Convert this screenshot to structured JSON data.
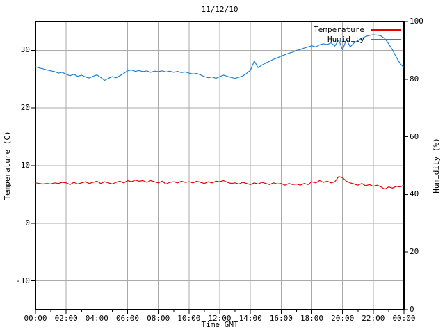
{
  "title": "11/12/10",
  "colors": {
    "background": "#ffffff",
    "border": "#000000",
    "grid": "#aaaaaa",
    "text": "#000000",
    "temperature_line": "#e60000",
    "humidity_line": "#1e7fd8"
  },
  "chart_data": {
    "type": "line",
    "title": "11/12/10",
    "xlabel": "Time GMT",
    "ylabel": "Temperature (C)",
    "y2label": "Humidity (%)",
    "x_range_hours": [
      0,
      24
    ],
    "x_major_tick_step_hours": 2,
    "x_minor_tick_step_hours": 1,
    "x_ticklabels": [
      "00:00",
      "02:00",
      "04:00",
      "06:00",
      "08:00",
      "10:00",
      "12:00",
      "14:00",
      "16:00",
      "18:00",
      "20:00",
      "22:00",
      "00:00"
    ],
    "ylim": [
      -15,
      35
    ],
    "yticks": [
      -10,
      0,
      10,
      20,
      30
    ],
    "y2lim": [
      0,
      100
    ],
    "y2ticks": [
      0,
      20,
      40,
      60,
      80,
      100
    ],
    "grid": true,
    "legend_position": "top-right-inside",
    "x_start_hours": 0,
    "x_step_hours": 0.25,
    "series": [
      {
        "name": "Temperature",
        "axis": "y",
        "color": "#e60000",
        "values": [
          7.0,
          6.9,
          6.8,
          6.9,
          6.8,
          7.0,
          6.9,
          7.1,
          7.0,
          6.7,
          7.1,
          6.8,
          7.0,
          7.2,
          6.9,
          7.1,
          7.3,
          6.9,
          7.2,
          7.0,
          6.8,
          7.1,
          7.3,
          7.0,
          7.4,
          7.2,
          7.5,
          7.3,
          7.4,
          7.1,
          7.4,
          7.2,
          7.0,
          7.3,
          6.8,
          7.1,
          7.2,
          7.0,
          7.3,
          7.1,
          7.2,
          7.0,
          7.3,
          7.1,
          6.9,
          7.2,
          7.0,
          7.3,
          7.2,
          7.4,
          7.1,
          6.9,
          7.0,
          6.8,
          7.1,
          6.9,
          6.7,
          7.0,
          6.8,
          7.1,
          6.9,
          6.7,
          7.0,
          6.8,
          6.9,
          6.6,
          6.9,
          6.7,
          6.8,
          6.6,
          6.9,
          6.7,
          7.2,
          7.0,
          7.4,
          7.1,
          7.3,
          7.0,
          7.2,
          8.1,
          7.9,
          7.3,
          7.0,
          6.8,
          6.6,
          6.9,
          6.5,
          6.7,
          6.4,
          6.6,
          6.3,
          5.9,
          6.3,
          6.1,
          6.4,
          6.3,
          6.6
        ]
      },
      {
        "name": "Humidity",
        "axis": "y2",
        "color": "#1e7fd8",
        "values": [
          84.3,
          83.9,
          83.6,
          83.2,
          82.9,
          82.6,
          82.1,
          82.4,
          81.7,
          81.2,
          81.7,
          81.0,
          81.4,
          80.8,
          80.4,
          81.0,
          81.5,
          80.6,
          79.6,
          80.3,
          80.9,
          80.5,
          81.2,
          82.0,
          82.9,
          83.2,
          82.7,
          83.0,
          82.6,
          82.9,
          82.4,
          82.8,
          82.6,
          82.9,
          82.5,
          82.8,
          82.4,
          82.7,
          82.3,
          82.5,
          82.1,
          81.8,
          82.0,
          81.5,
          80.9,
          80.5,
          80.8,
          80.3,
          80.9,
          81.4,
          81.0,
          80.6,
          80.3,
          80.7,
          81.1,
          82.0,
          83.1,
          86.3,
          84.0,
          84.9,
          85.6,
          86.2,
          86.9,
          87.4,
          88.0,
          88.5,
          89.0,
          89.4,
          90.0,
          90.3,
          90.8,
          91.2,
          91.6,
          91.2,
          91.9,
          92.3,
          92.0,
          92.6,
          91.5,
          93.6,
          90.2,
          93.8,
          91.2,
          92.6,
          93.4,
          94.2,
          94.8,
          95.2,
          95.4,
          95.3,
          95.0,
          94.1,
          92.3,
          90.2,
          87.6,
          85.4,
          84.0
        ]
      }
    ]
  }
}
